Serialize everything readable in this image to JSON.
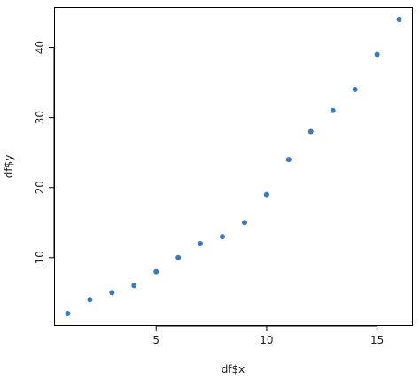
{
  "chart_data": {
    "type": "scatter",
    "title": "",
    "xlabel": "df$x",
    "ylabel": "df$y",
    "xlim": [
      0.4,
      16.6
    ],
    "ylim": [
      0.3,
      45.7
    ],
    "x_ticks": [
      5,
      10,
      15
    ],
    "y_ticks": [
      10,
      20,
      30,
      40
    ],
    "x": [
      1,
      2,
      3,
      4,
      5,
      6,
      7,
      8,
      9,
      10,
      11,
      12,
      13,
      14,
      15,
      16
    ],
    "y": [
      2,
      4,
      5,
      6,
      8,
      10,
      12,
      13,
      15,
      19,
      24,
      28,
      31,
      34,
      39,
      44
    ],
    "point_color": "#3a7bbf",
    "grid": false,
    "legend": "none"
  }
}
